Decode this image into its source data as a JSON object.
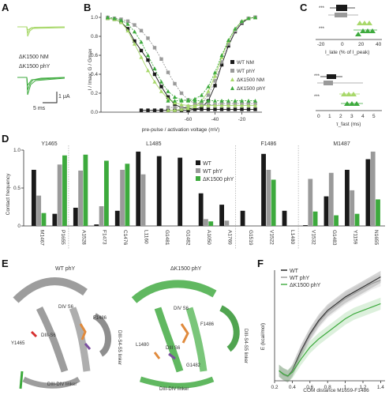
{
  "panel_labels": {
    "A": "A",
    "B": "B",
    "C": "C",
    "D": "D",
    "E": "E",
    "F": "F"
  },
  "colors": {
    "black": "#1a1a1a",
    "gray": "#9a9a9a",
    "light_green": "#a8d86a",
    "green": "#3daa3d",
    "orange": "#e08a3c",
    "purple": "#7b4fa0",
    "red": "#d63030",
    "ribbon_gray": "#8c8c8c",
    "ribbon_green": "#4fb04f"
  },
  "panelA": {
    "trace1_label": "ΔK1500 NM",
    "trace2_label": "ΔK1500 phY",
    "scale_y": "1 μA",
    "scale_x": "5 ms"
  },
  "panelC": {
    "top_axis_label": "I_late (% of I_peak)",
    "bottom_axis_label": "τ_fast (ms)",
    "top_ticks": [
      "-20",
      "0",
      "20",
      "40"
    ],
    "bottom_ticks": [
      "0",
      "1",
      "2",
      "3",
      "4",
      "5"
    ],
    "sig_top": [
      "***",
      "***"
    ],
    "sig_bottom": [
      "***",
      "***"
    ]
  },
  "panelE": {
    "left_title": "WT phY",
    "right_title": "ΔK1500 phY",
    "left_labels": [
      "DIV S6",
      "DIII-S6",
      "Y1465",
      "DIII-DIV linker",
      "DIII-S4-S5 linker",
      "F1486"
    ],
    "right_labels": [
      "DIV S6",
      "F1486",
      "DIII S6",
      "DIII-DIV linker",
      "DIII-S4-S5 linker",
      "G1482",
      "L1480"
    ]
  },
  "chart_data": [
    {
      "id": "B",
      "type": "line",
      "title": "",
      "xlabel": "pre-pulse / activation voltage (mV)",
      "ylabel": "I / Imax; G / Gmax",
      "xlim": [
        -125,
        -5
      ],
      "ylim": [
        0,
        1.05
      ],
      "xticks": [
        -60,
        -40,
        -20
      ],
      "yticks": [
        0,
        0.2,
        0.4,
        0.6,
        0.8,
        1.0
      ],
      "series": [
        {
          "name": "WT NM",
          "color": "#1a1a1a",
          "marker": "square",
          "inact_x": [
            -120,
            -115,
            -110,
            -105,
            -100,
            -95,
            -90,
            -85,
            -80,
            -75,
            -70,
            -65,
            -60,
            -55,
            -50,
            -45,
            -40,
            -35,
            -30,
            -25,
            -20,
            -15,
            -10
          ],
          "inact_y": [
            0.99,
            0.98,
            0.95,
            0.88,
            0.75,
            0.65,
            0.55,
            0.4,
            0.27,
            0.16,
            0.08,
            0.05,
            0.04,
            0.03,
            0.03,
            0.03,
            0.03,
            0.03,
            0.03,
            0.03,
            0.03,
            0.03,
            0.03
          ],
          "act_x": [
            -95,
            -90,
            -85,
            -80,
            -75,
            -70,
            -65,
            -60,
            -55,
            -50,
            -45,
            -40,
            -35,
            -30,
            -25,
            -20,
            -15,
            -10
          ],
          "act_y": [
            0.02,
            0.02,
            0.02,
            0.02,
            0.02,
            0.02,
            0.02,
            0.02,
            0.03,
            0.05,
            0.12,
            0.28,
            0.5,
            0.7,
            0.85,
            0.94,
            0.99,
            1.0
          ]
        },
        {
          "name": "WT phY",
          "color": "#9a9a9a",
          "marker": "square",
          "inact_x": [
            -120,
            -115,
            -110,
            -105,
            -100,
            -95,
            -90,
            -85,
            -80,
            -75,
            -70,
            -65,
            -60,
            -55,
            -50,
            -45,
            -40,
            -35,
            -30,
            -25,
            -20,
            -15,
            -10
          ],
          "inact_y": [
            1.0,
            0.99,
            0.98,
            0.96,
            0.92,
            0.86,
            0.78,
            0.68,
            0.56,
            0.42,
            0.3,
            0.2,
            0.13,
            0.09,
            0.08,
            0.08,
            0.08,
            0.09,
            0.09,
            0.09,
            0.09,
            0.09,
            0.09
          ],
          "act_x": [
            -75,
            -70,
            -65,
            -60,
            -55,
            -50,
            -45,
            -40,
            -35,
            -30,
            -25,
            -20,
            -15,
            -10
          ],
          "act_y": [
            0.05,
            0.05,
            0.05,
            0.06,
            0.07,
            0.1,
            0.18,
            0.33,
            0.53,
            0.72,
            0.86,
            0.95,
            0.99,
            1.0
          ]
        },
        {
          "name": "ΔK1500 NM",
          "color": "#a8d86a",
          "marker": "triangle",
          "inact_x": [
            -120,
            -115,
            -110,
            -105,
            -100,
            -95,
            -90,
            -85,
            -80,
            -75,
            -70,
            -65,
            -60,
            -55,
            -50,
            -45,
            -40,
            -35,
            -30,
            -25,
            -20,
            -15,
            -10
          ],
          "inact_y": [
            0.99,
            0.98,
            0.95,
            0.86,
            0.72,
            0.58,
            0.44,
            0.32,
            0.22,
            0.14,
            0.1,
            0.08,
            0.07,
            0.07,
            0.07,
            0.07,
            0.07,
            0.07,
            0.07,
            0.07,
            0.07,
            0.07,
            0.07
          ],
          "act_x": [
            -75,
            -70,
            -65,
            -60,
            -55,
            -50,
            -45,
            -40,
            -35,
            -30,
            -25,
            -20,
            -15,
            -10
          ],
          "act_y": [
            0.02,
            0.02,
            0.03,
            0.04,
            0.06,
            0.12,
            0.22,
            0.38,
            0.58,
            0.75,
            0.88,
            0.96,
            0.99,
            1.0
          ]
        },
        {
          "name": "ΔK1500 phY",
          "color": "#3daa3d",
          "marker": "triangle",
          "inact_x": [
            -120,
            -115,
            -110,
            -105,
            -100,
            -95,
            -90,
            -85,
            -80,
            -75,
            -70,
            -65,
            -60,
            -55,
            -50,
            -45,
            -40,
            -35,
            -30,
            -25,
            -20,
            -15,
            -10
          ],
          "inact_y": [
            1.0,
            0.99,
            0.97,
            0.93,
            0.85,
            0.74,
            0.6,
            0.46,
            0.32,
            0.22,
            0.16,
            0.13,
            0.12,
            0.12,
            0.12,
            0.12,
            0.12,
            0.12,
            0.12,
            0.12,
            0.12,
            0.12,
            0.12
          ],
          "act_x": [
            -75,
            -70,
            -65,
            -60,
            -55,
            -50,
            -45,
            -40,
            -35,
            -30,
            -25,
            -20,
            -15,
            -10
          ],
          "act_y": [
            0.12,
            0.12,
            0.12,
            0.13,
            0.14,
            0.18,
            0.27,
            0.42,
            0.6,
            0.76,
            0.88,
            0.96,
            0.99,
            1.0
          ]
        }
      ]
    },
    {
      "id": "D",
      "type": "bar",
      "title": "",
      "ylabel": "Contact frequency",
      "ylim": [
        0,
        1.0
      ],
      "yticks": [
        0,
        0.5,
        1.0
      ],
      "groups": [
        {
          "name": "Y1465",
          "categories": [
            "M1467",
            "P1655"
          ]
        },
        {
          "name": "L1485",
          "categories": [
            "A1528",
            "F1473",
            "C1476",
            "L1160",
            "G1481",
            "G1482",
            "A1050",
            "A1769"
          ]
        },
        {
          "name": "F1486",
          "categories": [
            "G1519",
            "V1522",
            "L1480"
          ]
        },
        {
          "name": "M1487",
          "categories": [
            "V1532",
            "G1483",
            "Y1159",
            "N1655"
          ]
        }
      ],
      "categories": [
        "M1467",
        "P1655",
        "A1528",
        "F1473",
        "C1476",
        "L1160",
        "G1481",
        "G1482",
        "A1050",
        "A1769",
        "G1519",
        "V1522",
        "L1480",
        "V1532",
        "G1483",
        "Y1159",
        "N1655"
      ],
      "series": [
        {
          "name": "WT",
          "color": "#1a1a1a",
          "values": [
            0.74,
            0.16,
            0.24,
            0.02,
            0.2,
            0.98,
            0.92,
            0.9,
            0.43,
            0.28,
            0.2,
            0.95,
            0.2,
            0.01,
            0.39,
            0.74,
            0.88
          ]
        },
        {
          "name": "WT phY",
          "color": "#9a9a9a",
          "values": [
            0.4,
            0.81,
            0.73,
            0.26,
            0.74,
            0.68,
            0.0,
            0.0,
            0.09,
            0.07,
            0.0,
            0.74,
            0.0,
            0.62,
            0.7,
            0.47,
            0.98
          ]
        },
        {
          "name": "ΔK1500 phY",
          "color": "#3daa3d",
          "values": [
            0.17,
            0.93,
            0.94,
            0.86,
            0.82,
            0.0,
            0.0,
            0.0,
            0.06,
            0.0,
            0.0,
            0.61,
            0.0,
            0.19,
            0.14,
            0.16,
            0.35
          ]
        }
      ]
    },
    {
      "id": "F",
      "type": "line",
      "title": "",
      "xlabel": "COM distance M1659-F1486",
      "ylabel": "E (kcal/mol)",
      "xlim": [
        0.2,
        1.45
      ],
      "ylim": [
        -1,
        32
      ],
      "xticks": [
        0.2,
        0.4,
        0.6,
        0.8,
        1.0,
        1.2,
        1.4
      ],
      "series": [
        {
          "name": "WT",
          "color": "#1a1a1a",
          "x": [
            0.25,
            0.3,
            0.35,
            0.4,
            0.45,
            0.5,
            0.6,
            0.7,
            0.8,
            0.9,
            1.0,
            1.1,
            1.2,
            1.3,
            1.4
          ],
          "y": [
            2,
            1,
            0.3,
            2,
            5,
            8,
            13,
            17,
            20,
            22,
            24,
            25.5,
            27,
            28.5,
            30
          ]
        },
        {
          "name": "WT phY",
          "color": "#9a9a9a",
          "x": [
            0.25,
            0.3,
            0.35,
            0.4,
            0.45,
            0.5,
            0.6,
            0.7,
            0.8,
            0.9,
            1.0,
            1.1,
            1.2,
            1.3,
            1.4
          ],
          "y": [
            2,
            0.8,
            0.2,
            1.8,
            4.5,
            7.5,
            12.5,
            16.5,
            19.5,
            21.5,
            23.5,
            25,
            26.5,
            28,
            29
          ]
        },
        {
          "name": "ΔK1500 phY",
          "color": "#3daa3d",
          "x": [
            0.25,
            0.3,
            0.35,
            0.4,
            0.45,
            0.5,
            0.6,
            0.7,
            0.8,
            0.9,
            1.0,
            1.1,
            1.2,
            1.3,
            1.4
          ],
          "y": [
            2,
            1,
            0.5,
            1.5,
            3.5,
            5.5,
            9,
            11.5,
            13.5,
            15.5,
            17.5,
            19,
            20,
            21,
            22
          ]
        }
      ]
    }
  ]
}
